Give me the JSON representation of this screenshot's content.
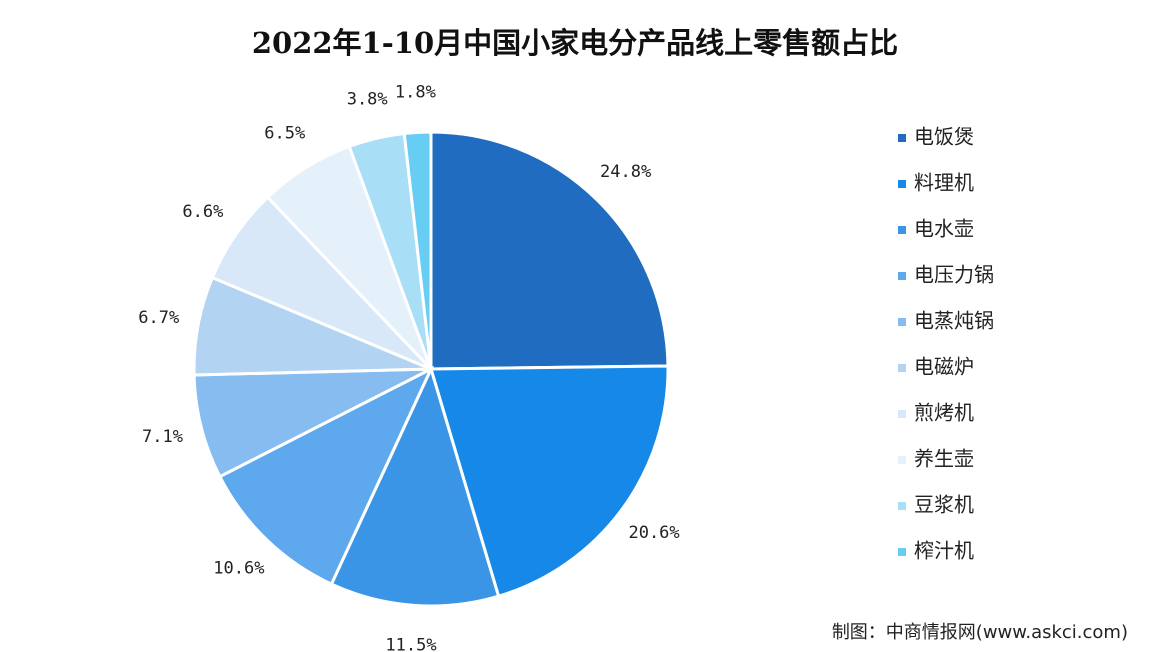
{
  "chart_data": {
    "type": "pie",
    "title": "2022年1-10月中国小家电分产品线上零售额占比",
    "categories": [
      "电饭煲",
      "料理机",
      "电水壶",
      "电压力锅",
      "电蒸炖锅",
      "电磁炉",
      "煎烤机",
      "养生壶",
      "豆浆机",
      "榨汁机"
    ],
    "values": [
      24.8,
      20.6,
      11.5,
      10.6,
      7.1,
      6.7,
      6.6,
      6.5,
      3.8,
      1.8
    ],
    "value_labels": [
      "24.8%",
      "20.6%",
      "11.5%",
      "10.6%",
      "7.1%",
      "6.7%",
      "6.6%",
      "6.5%",
      "3.8%",
      "1.8%"
    ],
    "colors": [
      "#1f6cc0",
      "#1688e8",
      "#3b95e6",
      "#5ea8ee",
      "#86bcf0",
      "#b3d3f3",
      "#d9e8f8",
      "#e4f1fb",
      "#a9def7",
      "#67cdf3"
    ],
    "legend": "right",
    "source": "制图：中商情报网(www.askci.com)"
  }
}
